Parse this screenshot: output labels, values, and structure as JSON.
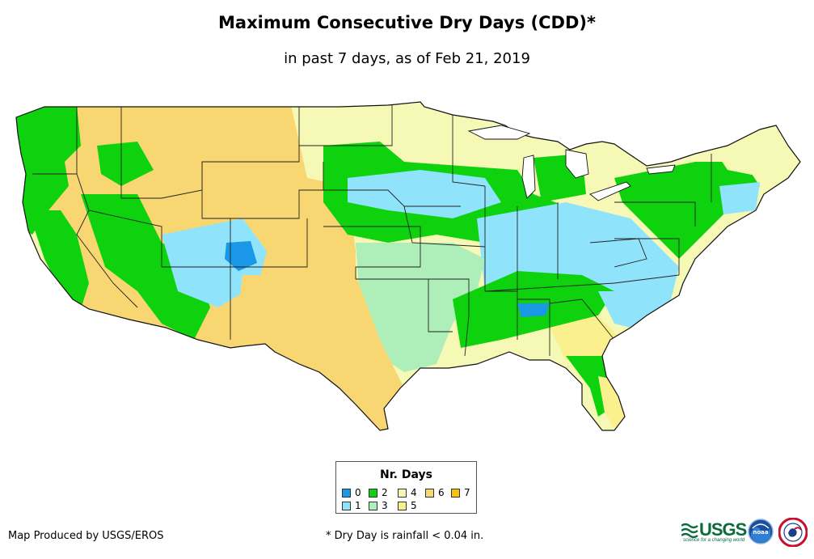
{
  "title": "Maximum Consecutive Dry Days (CDD)*",
  "subtitle": "in past 7 days, as of Feb 21, 2019",
  "legend": {
    "title": "Nr. Days",
    "items": [
      {
        "label": "0",
        "color": "#1a97e6"
      },
      {
        "label": "1",
        "color": "#8fe4fb"
      },
      {
        "label": "2",
        "color": "#0dd20d"
      },
      {
        "label": "3",
        "color": "#aeeeb9"
      },
      {
        "label": "4",
        "color": "#f6f8b5"
      },
      {
        "label": "5",
        "color": "#fbf08e"
      },
      {
        "label": "6",
        "color": "#f8d772"
      },
      {
        "label": "7",
        "color": "#f5c20e"
      }
    ]
  },
  "credit": "Map Produced by USGS/EROS",
  "footnote": "* Dry Day is rainfall < 0.04 in.",
  "logos": {
    "usgs": "USGS",
    "usgs_tagline": "science for a changing world",
    "noaa": "noaa"
  }
}
